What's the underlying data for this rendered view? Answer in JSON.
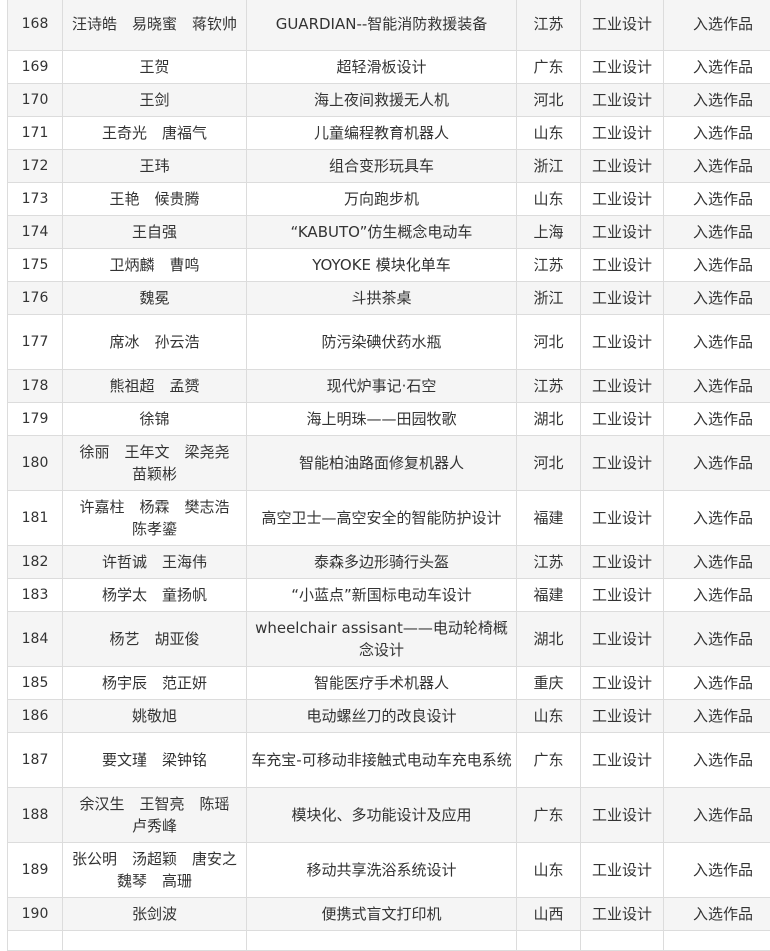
{
  "rows": [
    {
      "no": "168",
      "names": "汪诗皓　易晓蜜　蒋钦帅",
      "title": "GUARDIAN--智能消防救援装备",
      "province": "江苏",
      "category": "工业设计",
      "award": "入选作品"
    },
    {
      "no": "169",
      "names": "王贺",
      "title": "超轻滑板设计",
      "province": "广东",
      "category": "工业设计",
      "award": "入选作品"
    },
    {
      "no": "170",
      "names": "王剑",
      "title": "海上夜间救援无人机",
      "province": "河北",
      "category": "工业设计",
      "award": "入选作品"
    },
    {
      "no": "171",
      "names": "王奇光　唐福气",
      "title": "儿童编程教育机器人",
      "province": "山东",
      "category": "工业设计",
      "award": "入选作品"
    },
    {
      "no": "172",
      "names": "王玮",
      "title": "组合变形玩具车",
      "province": "浙江",
      "category": "工业设计",
      "award": "入选作品"
    },
    {
      "no": "173",
      "names": "王艳　候贵腾",
      "title": "万向跑步机",
      "province": "山东",
      "category": "工业设计",
      "award": "入选作品"
    },
    {
      "no": "174",
      "names": "王自强",
      "title": "“KABUTO”仿生概念电动车",
      "province": "上海",
      "category": "工业设计",
      "award": "入选作品"
    },
    {
      "no": "175",
      "names": "卫炳麟　曹鸣",
      "title": "YOYOKE 模块化单车",
      "province": "江苏",
      "category": "工业设计",
      "award": "入选作品"
    },
    {
      "no": "176",
      "names": "魏冕",
      "title": "斗拱茶桌",
      "province": "浙江",
      "category": "工业设计",
      "award": "入选作品"
    },
    {
      "no": "177",
      "names": "席冰　孙云浩",
      "title": "防污染碘伏药水瓶",
      "province": "河北",
      "category": "工业设计",
      "award": "入选作品"
    },
    {
      "no": "178",
      "names": "熊祖超　孟赟",
      "title": "现代炉事记·石空",
      "province": "江苏",
      "category": "工业设计",
      "award": "入选作品"
    },
    {
      "no": "179",
      "names": "徐锦",
      "title": "海上明珠——田园牧歌",
      "province": "湖北",
      "category": "工业设计",
      "award": "入选作品"
    },
    {
      "no": "180",
      "names": "徐丽　王年文　梁尧尧　苗颖彬",
      "title": "智能柏油路面修复机器人",
      "province": "河北",
      "category": "工业设计",
      "award": "入选作品"
    },
    {
      "no": "181",
      "names": "许嘉柱　杨霖　樊志浩　陈孝鎏",
      "title": "高空卫士—高空安全的智能防护设计",
      "province": "福建",
      "category": "工业设计",
      "award": "入选作品"
    },
    {
      "no": "182",
      "names": "许哲诚　王海伟",
      "title": "泰森多边形骑行头盔",
      "province": "江苏",
      "category": "工业设计",
      "award": "入选作品"
    },
    {
      "no": "183",
      "names": "杨学太　童扬帆",
      "title": "“小蓝点”新国标电动车设计",
      "province": "福建",
      "category": "工业设计",
      "award": "入选作品"
    },
    {
      "no": "184",
      "names": "杨艺　胡亚俊",
      "title": "wheelchair assisant——电动轮椅概念设计",
      "province": "湖北",
      "category": "工业设计",
      "award": "入选作品"
    },
    {
      "no": "185",
      "names": "杨宇辰　范正妍",
      "title": "智能医疗手术机器人",
      "province": "重庆",
      "category": "工业设计",
      "award": "入选作品"
    },
    {
      "no": "186",
      "names": "姚敬旭",
      "title": "电动螺丝刀的改良设计",
      "province": "山东",
      "category": "工业设计",
      "award": "入选作品"
    },
    {
      "no": "187",
      "names": "要文瑾　梁钟铭",
      "title": "车充宝-可移动非接触式电动车充电系统",
      "province": "广东",
      "category": "工业设计",
      "award": "入选作品"
    },
    {
      "no": "188",
      "names": "余汉生　王智亮　陈瑶　卢秀峰",
      "title": "模块化、多功能设计及应用",
      "province": "广东",
      "category": "工业设计",
      "award": "入选作品"
    },
    {
      "no": "189",
      "names": "张公明　汤超颖　唐安之　魏琴　高珊",
      "title": "移动共享洗浴系统设计",
      "province": "山东",
      "category": "工业设计",
      "award": "入选作品"
    },
    {
      "no": "190",
      "names": "张剑波",
      "title": "便携式盲文打印机",
      "province": "山西",
      "category": "工业设计",
      "award": "入选作品"
    }
  ]
}
